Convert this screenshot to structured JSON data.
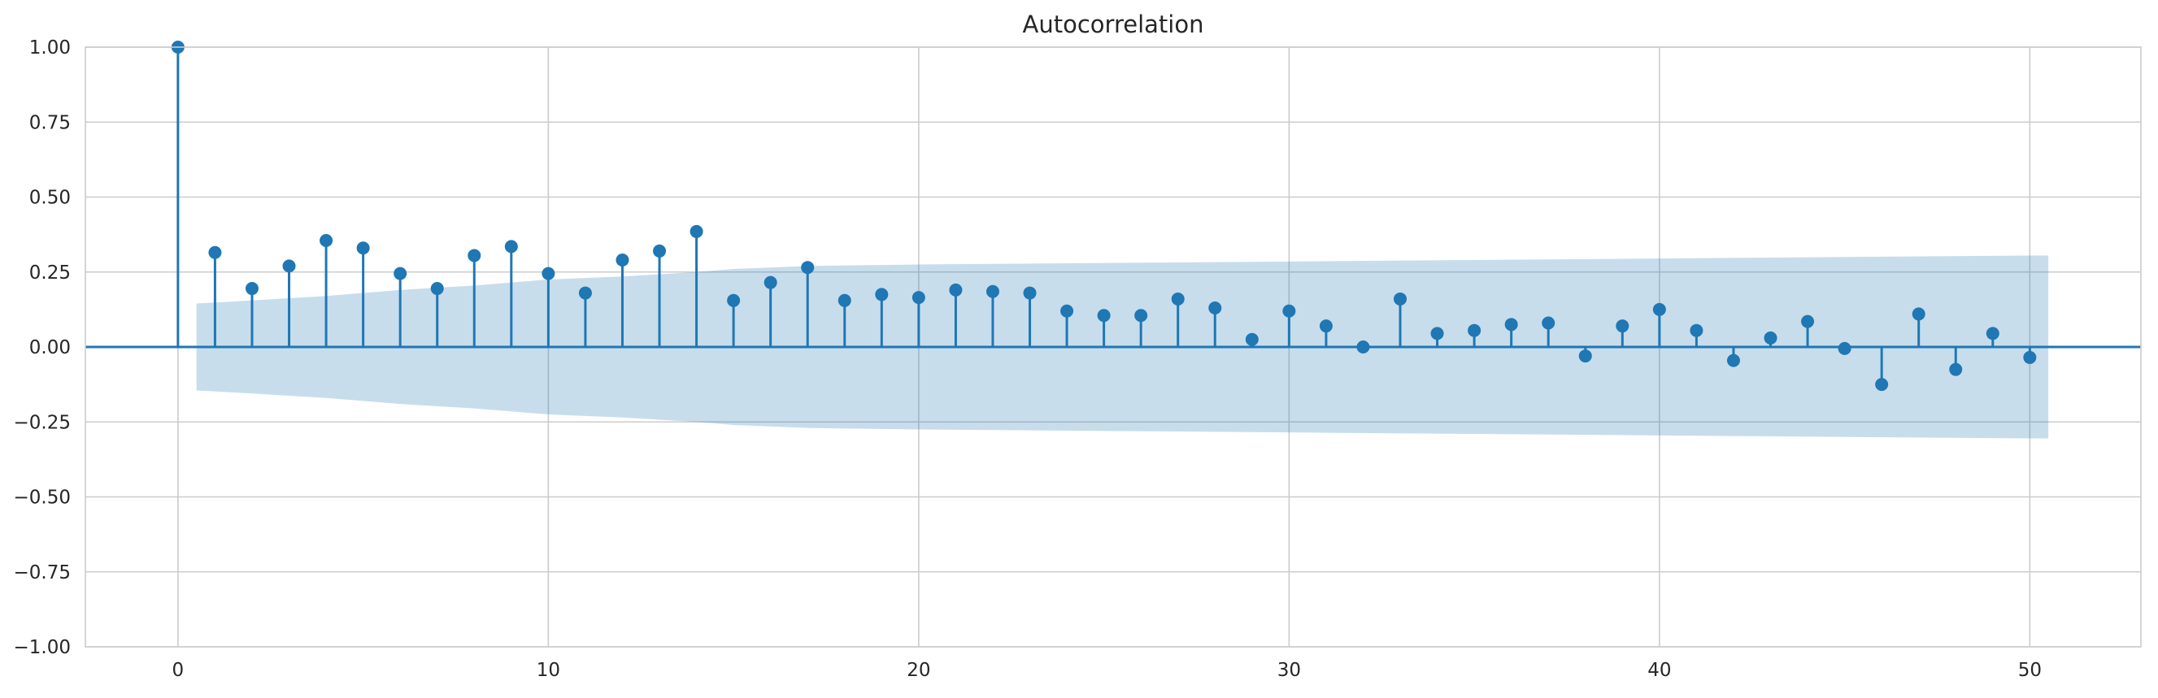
{
  "chart_data": {
    "type": "stem",
    "title": "Autocorrelation",
    "xlabel": "",
    "ylabel": "",
    "xlim": [
      -2.5,
      53
    ],
    "ylim": [
      -1.0,
      1.0
    ],
    "x_ticks": [
      0,
      10,
      20,
      30,
      40,
      50
    ],
    "x_tick_labels": [
      "0",
      "10",
      "20",
      "30",
      "40",
      "50"
    ],
    "y_ticks": [
      -1.0,
      -0.75,
      -0.5,
      -0.25,
      0.0,
      0.25,
      0.5,
      0.75,
      1.0
    ],
    "y_tick_labels": [
      "−1.00",
      "−0.75",
      "−0.50",
      "−0.25",
      "0.00",
      "0.25",
      "0.50",
      "0.75",
      "1.00"
    ],
    "grid": true,
    "zero_line": true,
    "colors": {
      "stem": "#1f77b4",
      "confidence_band": "#1f77b4",
      "grid": "#cccccc",
      "text": "#262626"
    },
    "lags": [
      0,
      1,
      2,
      3,
      4,
      5,
      6,
      7,
      8,
      9,
      10,
      11,
      12,
      13,
      14,
      15,
      16,
      17,
      18,
      19,
      20,
      21,
      22,
      23,
      24,
      25,
      26,
      27,
      28,
      29,
      30,
      31,
      32,
      33,
      34,
      35,
      36,
      37,
      38,
      39,
      40,
      41,
      42,
      43,
      44,
      45,
      46,
      47,
      48,
      49,
      50
    ],
    "values": [
      1.0,
      0.315,
      0.195,
      0.27,
      0.355,
      0.33,
      0.245,
      0.195,
      0.305,
      0.335,
      0.245,
      0.18,
      0.29,
      0.32,
      0.385,
      0.155,
      0.215,
      0.265,
      0.155,
      0.175,
      0.165,
      0.19,
      0.185,
      0.18,
      0.12,
      0.105,
      0.105,
      0.16,
      0.13,
      0.025,
      0.12,
      0.07,
      0.0,
      0.16,
      0.045,
      0.055,
      0.075,
      0.08,
      -0.03,
      0.07,
      0.125,
      0.055,
      -0.045,
      0.03,
      0.085,
      -0.005,
      -0.125,
      0.11,
      -0.075,
      0.045,
      -0.035
    ],
    "confidence_band": {
      "x": [
        0.5,
        2,
        4,
        6,
        8,
        10,
        12,
        14,
        15,
        17,
        20,
        25,
        30,
        35,
        40,
        45,
        50,
        50.5
      ],
      "upper": [
        0.145,
        0.155,
        0.17,
        0.19,
        0.205,
        0.225,
        0.235,
        0.25,
        0.26,
        0.27,
        0.275,
        0.28,
        0.285,
        0.29,
        0.295,
        0.3,
        0.305,
        0.305
      ]
    }
  }
}
